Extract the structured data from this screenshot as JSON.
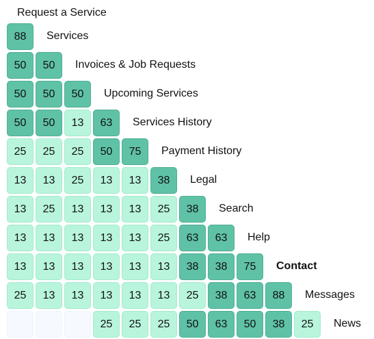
{
  "top_label": "Request a Service",
  "rows": [
    {
      "label": "Services",
      "bold": false,
      "cells": [
        "88"
      ]
    },
    {
      "label": "Invoices & Job Requests",
      "bold": false,
      "cells": [
        "50",
        "50"
      ]
    },
    {
      "label": "Upcoming Services",
      "bold": false,
      "cells": [
        "50",
        "50",
        "50"
      ]
    },
    {
      "label": "Services History",
      "bold": false,
      "cells": [
        "50",
        "50",
        "13",
        "63"
      ]
    },
    {
      "label": "Payment History",
      "bold": false,
      "cells": [
        "25",
        "25",
        "25",
        "50",
        "75"
      ]
    },
    {
      "label": "Legal",
      "bold": false,
      "cells": [
        "13",
        "13",
        "25",
        "13",
        "13",
        "38"
      ]
    },
    {
      "label": "Search",
      "bold": false,
      "cells": [
        "13",
        "25",
        "13",
        "13",
        "13",
        "25",
        "38"
      ]
    },
    {
      "label": "Help",
      "bold": false,
      "cells": [
        "13",
        "13",
        "13",
        "13",
        "13",
        "25",
        "63",
        "63"
      ]
    },
    {
      "label": "Contact",
      "bold": true,
      "cells": [
        "13",
        "13",
        "13",
        "13",
        "13",
        "13",
        "38",
        "38",
        "75"
      ]
    },
    {
      "label": "Messages",
      "bold": false,
      "cells": [
        "25",
        "13",
        "13",
        "13",
        "13",
        "13",
        "25",
        "38",
        "63",
        "88"
      ]
    },
    {
      "label": "News",
      "bold": false,
      "cells": [
        "",
        "",
        "",
        "25",
        "25",
        "25",
        "50",
        "63",
        "50",
        "38",
        "25"
      ]
    }
  ],
  "colors": {
    "dark": "#5fc2a6",
    "light": "#b8f5dc",
    "blank": "#f6f9ff"
  }
}
